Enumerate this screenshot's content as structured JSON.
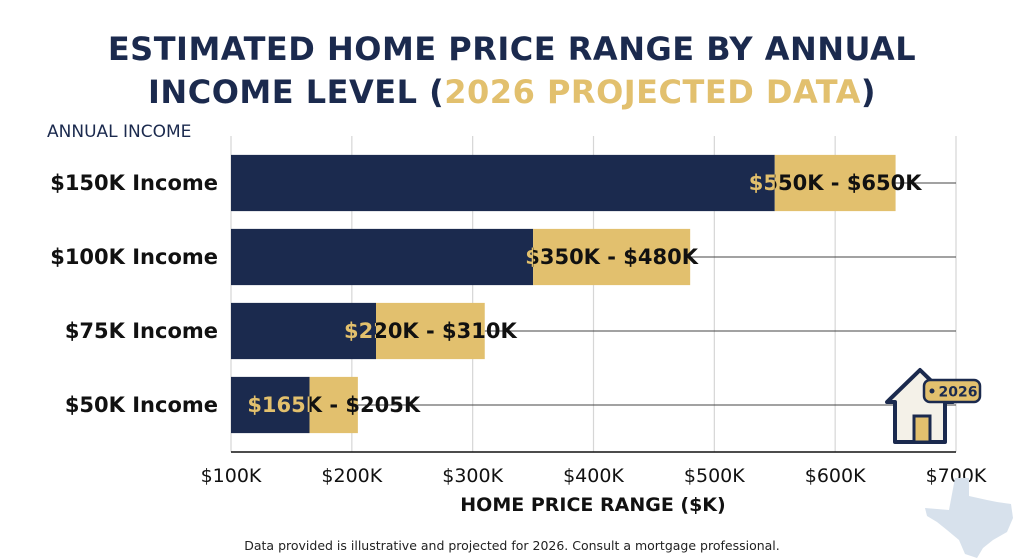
{
  "title": {
    "line1": "ESTIMATED HOME PRICE RANGE BY ANNUAL",
    "line2_prefix": "INCOME LEVEL (",
    "line2_highlight": "2026 PROJECTED DATA",
    "line2_suffix": ")"
  },
  "footnote": "Data provided is illustrative and projected for 2026. Consult a mortgage professional.",
  "badge_text": "2026",
  "colors": {
    "navy": "#1b2a4e",
    "gold": "#e2c06e",
    "grid": "#d6d6d6"
  },
  "icons": [
    "house-icon",
    "texas-map-icon"
  ],
  "chart_data": {
    "type": "bar",
    "orientation": "horizontal",
    "stacked": true,
    "ylabel": "ANNUAL INCOME",
    "xlabel": "HOME PRICE RANGE ($K)",
    "xlim": [
      100,
      700
    ],
    "xticks": [
      100,
      200,
      300,
      400,
      500,
      600,
      700
    ],
    "xtick_labels": [
      "$100K",
      "$200K",
      "$300K",
      "$400K",
      "$500K",
      "$600K",
      "$700K"
    ],
    "grid": true,
    "categories": [
      "$150K Income",
      "$100K Income",
      "$75K Income",
      "$50K Income"
    ],
    "ranges": [
      {
        "low": 550,
        "high": 650,
        "label": "$550K - $650K"
      },
      {
        "low": 350,
        "high": 480,
        "label": "$350K - $480K"
      },
      {
        "low": 220,
        "high": 310,
        "label": "$220K - $310K"
      },
      {
        "low": 165,
        "high": 205,
        "label": "$165K - $205K"
      }
    ]
  }
}
